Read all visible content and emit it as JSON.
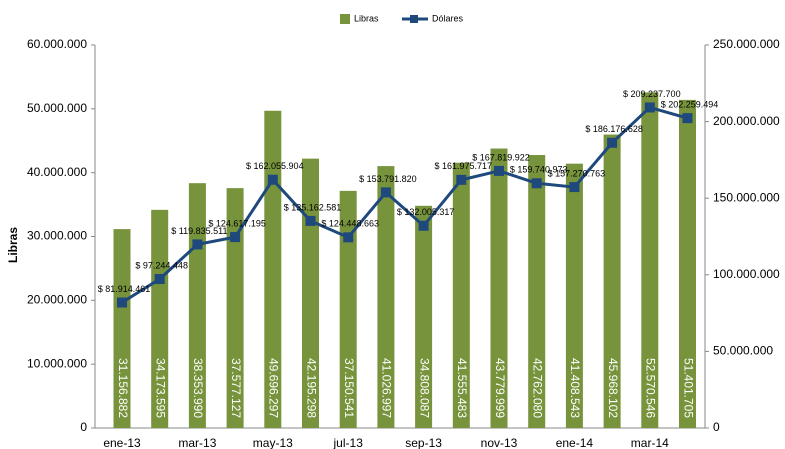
{
  "chart_data": {
    "type": "bar_line",
    "y_label": "Libras",
    "categories": [
      "ene-13",
      null,
      "mar-13",
      null,
      "may-13",
      null,
      "jul-13",
      null,
      "sep-13",
      null,
      "nov-13",
      null,
      "ene-14",
      null,
      "mar-14",
      null
    ],
    "series": [
      {
        "name": "Libras",
        "type": "bar",
        "color": "#77933c",
        "axis": "y",
        "values": [
          31156882,
          34173595,
          38353990,
          37577127,
          49696297,
          42195298,
          37150541,
          41026997,
          34808087,
          41555483,
          43779999,
          42762080,
          41408543,
          45968102,
          52570546,
          51401705
        ],
        "value_labels": [
          "31.156.882",
          "34.173.595",
          "38.353.990",
          "37.577.127",
          "49.696.297",
          "42.195.298",
          "37.150.541",
          "41.026.997",
          "34.808.087",
          "41.555.483",
          "43.779.999",
          "42.762.080",
          "41.408.543",
          "45.968.102",
          "52.570.546",
          "51.401.705"
        ]
      },
      {
        "name": "Dólares",
        "type": "line",
        "color": "#1f497d",
        "axis": "y2",
        "values": [
          81914461,
          97244448,
          119835511,
          124617195,
          162055904,
          135162581,
          124448663,
          153791820,
          132005317,
          161975717,
          167819922,
          159740973,
          157270763,
          186176628,
          209237700,
          202259494
        ],
        "value_labels": [
          "$ 81.914.461",
          "$ 97.244.448",
          "$ 119.835.511",
          "$ 124.617.195",
          "$ 162.055.904",
          "$ 135.162.581",
          "$ 124.448.663",
          "$ 153.791.820",
          "$ 132.005.317",
          "$ 161.975.717",
          "$ 167.819.922",
          "$ 159.740.973",
          "$ 157.270.763",
          "$ 186.176.628",
          "$ 209.237.700",
          "$ 202.259.494"
        ]
      }
    ],
    "ylim": [
      0,
      60000000
    ],
    "yticks": [
      {
        "value": 0,
        "label": "0"
      },
      {
        "value": 10000000,
        "label": "10.000.000"
      },
      {
        "value": 20000000,
        "label": "20.000.000"
      },
      {
        "value": 30000000,
        "label": "30.000.000"
      },
      {
        "value": 40000000,
        "label": "40.000.000"
      },
      {
        "value": 50000000,
        "label": "50.000.000"
      },
      {
        "value": 60000000,
        "label": "60.000.000"
      }
    ],
    "y2lim": [
      0,
      250000000
    ],
    "y2ticks": [
      {
        "value": 0,
        "label": "0"
      },
      {
        "value": 50000000,
        "label": "50.000.000"
      },
      {
        "value": 100000000,
        "label": "100.000.000"
      },
      {
        "value": 150000000,
        "label": "150.000.000"
      },
      {
        "value": 200000000,
        "label": "200.000.000"
      },
      {
        "value": 250000000,
        "label": "250.000.000"
      }
    ],
    "legend": "top"
  }
}
